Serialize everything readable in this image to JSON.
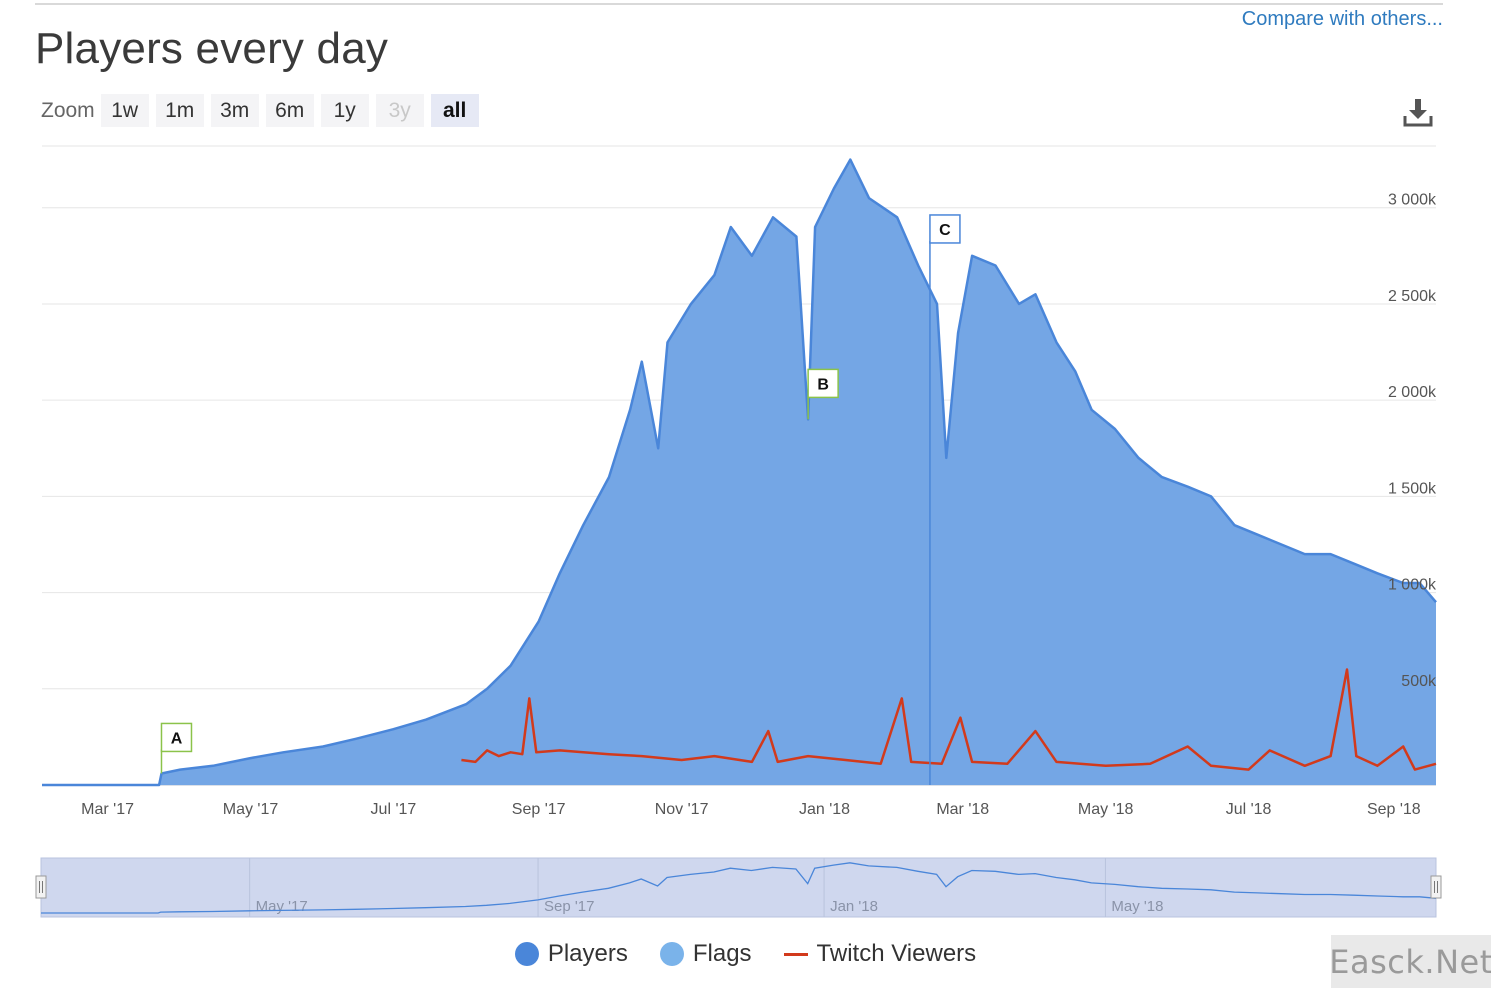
{
  "header": {
    "title": "Players every day",
    "compare_label": "Compare with others..."
  },
  "zoom": {
    "label": "Zoom",
    "buttons": [
      {
        "label": "1w",
        "state": "normal"
      },
      {
        "label": "1m",
        "state": "normal"
      },
      {
        "label": "3m",
        "state": "normal"
      },
      {
        "label": "6m",
        "state": "normal"
      },
      {
        "label": "1y",
        "state": "normal"
      },
      {
        "label": "3y",
        "state": "disabled"
      },
      {
        "label": "all",
        "state": "active"
      }
    ]
  },
  "toolbar": {
    "download_icon": "download-icon"
  },
  "chart_data": {
    "type": "area",
    "title": "Players every day",
    "x_axis": {
      "type": "datetime",
      "range": [
        "2017-02-01",
        "2018-09-19"
      ],
      "tick_labels": [
        "Mar '17",
        "May '17",
        "Jul '17",
        "Sep '17",
        "Nov '17",
        "Jan '18",
        "Mar '18",
        "May '18",
        "Jul '18",
        "Sep '18"
      ],
      "tick_dates": [
        "2017-03-01",
        "2017-05-01",
        "2017-07-01",
        "2017-09-01",
        "2017-11-01",
        "2018-01-01",
        "2018-03-01",
        "2018-05-01",
        "2018-07-01",
        "2018-09-01"
      ]
    },
    "y_axis": {
      "range": [
        0,
        3300000
      ],
      "tick_labels": [
        "500k",
        "1 000k",
        "1 500k",
        "2 000k",
        "2 500k",
        "3 000k"
      ],
      "tick_values": [
        500000,
        1000000,
        1500000,
        2000000,
        2500000,
        3000000
      ],
      "grid": true,
      "position": "right"
    },
    "series": [
      {
        "name": "Players",
        "color": "#4a86d9",
        "fill": "#74a6e5",
        "points": [
          [
            "2017-02-01",
            0
          ],
          [
            "2017-03-23",
            0
          ],
          [
            "2017-03-24",
            60000
          ],
          [
            "2017-04-01",
            80000
          ],
          [
            "2017-04-15",
            100000
          ],
          [
            "2017-05-01",
            140000
          ],
          [
            "2017-05-15",
            170000
          ],
          [
            "2017-06-01",
            200000
          ],
          [
            "2017-06-15",
            240000
          ],
          [
            "2017-07-01",
            290000
          ],
          [
            "2017-07-15",
            340000
          ],
          [
            "2017-08-01",
            420000
          ],
          [
            "2017-08-10",
            500000
          ],
          [
            "2017-08-20",
            620000
          ],
          [
            "2017-09-01",
            850000
          ],
          [
            "2017-09-10",
            1100000
          ],
          [
            "2017-09-20",
            1350000
          ],
          [
            "2017-10-01",
            1600000
          ],
          [
            "2017-10-10",
            1950000
          ],
          [
            "2017-10-15",
            2200000
          ],
          [
            "2017-10-22",
            1750000
          ],
          [
            "2017-10-26",
            2300000
          ],
          [
            "2017-11-05",
            2500000
          ],
          [
            "2017-11-15",
            2650000
          ],
          [
            "2017-11-22",
            2900000
          ],
          [
            "2017-12-01",
            2750000
          ],
          [
            "2017-12-10",
            2950000
          ],
          [
            "2017-12-20",
            2850000
          ],
          [
            "2017-12-25",
            1900000
          ],
          [
            "2017-12-28",
            2900000
          ],
          [
            "2018-01-05",
            3100000
          ],
          [
            "2018-01-12",
            3250000
          ],
          [
            "2018-01-20",
            3050000
          ],
          [
            "2018-02-01",
            2950000
          ],
          [
            "2018-02-10",
            2700000
          ],
          [
            "2018-02-18",
            2500000
          ],
          [
            "2018-02-22",
            1700000
          ],
          [
            "2018-02-27",
            2350000
          ],
          [
            "2018-03-05",
            2750000
          ],
          [
            "2018-03-15",
            2700000
          ],
          [
            "2018-03-25",
            2500000
          ],
          [
            "2018-04-01",
            2550000
          ],
          [
            "2018-04-10",
            2300000
          ],
          [
            "2018-04-18",
            2150000
          ],
          [
            "2018-04-25",
            1950000
          ],
          [
            "2018-05-05",
            1850000
          ],
          [
            "2018-05-15",
            1700000
          ],
          [
            "2018-05-25",
            1600000
          ],
          [
            "2018-06-05",
            1550000
          ],
          [
            "2018-06-15",
            1500000
          ],
          [
            "2018-06-25",
            1350000
          ],
          [
            "2018-07-05",
            1300000
          ],
          [
            "2018-07-15",
            1250000
          ],
          [
            "2018-07-25",
            1200000
          ],
          [
            "2018-08-05",
            1200000
          ],
          [
            "2018-08-15",
            1150000
          ],
          [
            "2018-08-25",
            1100000
          ],
          [
            "2018-09-05",
            1050000
          ],
          [
            "2018-09-12",
            1050000
          ],
          [
            "2018-09-19",
            950000
          ]
        ]
      },
      {
        "name": "Flags",
        "color": "#74a6e5",
        "flags": [
          {
            "label": "A",
            "date": "2017-03-24",
            "color": "#8bc34a"
          },
          {
            "label": "B",
            "date": "2017-12-25",
            "color": "#8bc34a"
          },
          {
            "label": "C",
            "date": "2018-02-15",
            "color": "#4a86d9"
          }
        ]
      },
      {
        "name": "Twitch Viewers",
        "color": "#d23a1c",
        "points": [
          [
            "2017-07-30",
            130000
          ],
          [
            "2017-08-05",
            120000
          ],
          [
            "2017-08-10",
            180000
          ],
          [
            "2017-08-15",
            150000
          ],
          [
            "2017-08-20",
            170000
          ],
          [
            "2017-08-25",
            160000
          ],
          [
            "2017-08-28",
            450000
          ],
          [
            "2017-08-31",
            170000
          ],
          [
            "2017-09-10",
            180000
          ],
          [
            "2017-09-20",
            170000
          ],
          [
            "2017-10-01",
            160000
          ],
          [
            "2017-10-15",
            150000
          ],
          [
            "2017-11-01",
            130000
          ],
          [
            "2017-11-15",
            150000
          ],
          [
            "2017-12-01",
            120000
          ],
          [
            "2017-12-08",
            280000
          ],
          [
            "2017-12-12",
            120000
          ],
          [
            "2017-12-25",
            150000
          ],
          [
            "2018-01-10",
            130000
          ],
          [
            "2018-01-25",
            110000
          ],
          [
            "2018-02-03",
            450000
          ],
          [
            "2018-02-07",
            120000
          ],
          [
            "2018-02-20",
            110000
          ],
          [
            "2018-02-28",
            350000
          ],
          [
            "2018-03-05",
            120000
          ],
          [
            "2018-03-20",
            110000
          ],
          [
            "2018-04-01",
            280000
          ],
          [
            "2018-04-10",
            120000
          ],
          [
            "2018-05-01",
            100000
          ],
          [
            "2018-05-20",
            110000
          ],
          [
            "2018-06-05",
            200000
          ],
          [
            "2018-06-15",
            100000
          ],
          [
            "2018-07-01",
            80000
          ],
          [
            "2018-07-10",
            180000
          ],
          [
            "2018-07-25",
            100000
          ],
          [
            "2018-08-05",
            150000
          ],
          [
            "2018-08-12",
            600000
          ],
          [
            "2018-08-16",
            150000
          ],
          [
            "2018-08-25",
            100000
          ],
          [
            "2018-09-05",
            200000
          ],
          [
            "2018-09-10",
            80000
          ],
          [
            "2018-09-19",
            110000
          ]
        ]
      }
    ],
    "navigator": {
      "labels": [
        "May '17",
        "Sep '17",
        "Jan '18",
        "May '18"
      ],
      "label_dates": [
        "2017-05-01",
        "2017-09-01",
        "2018-01-01",
        "2018-05-01"
      ]
    },
    "legend": {
      "position": "bottom-center",
      "items": [
        {
          "name": "Players",
          "color": "#4a86d9",
          "symbol": "circle"
        },
        {
          "name": "Flags",
          "color": "#7ab3ea",
          "symbol": "circle"
        },
        {
          "name": "Twitch Viewers",
          "color": "#d23a1c",
          "symbol": "line"
        }
      ]
    }
  },
  "watermark": "Easck.Net"
}
